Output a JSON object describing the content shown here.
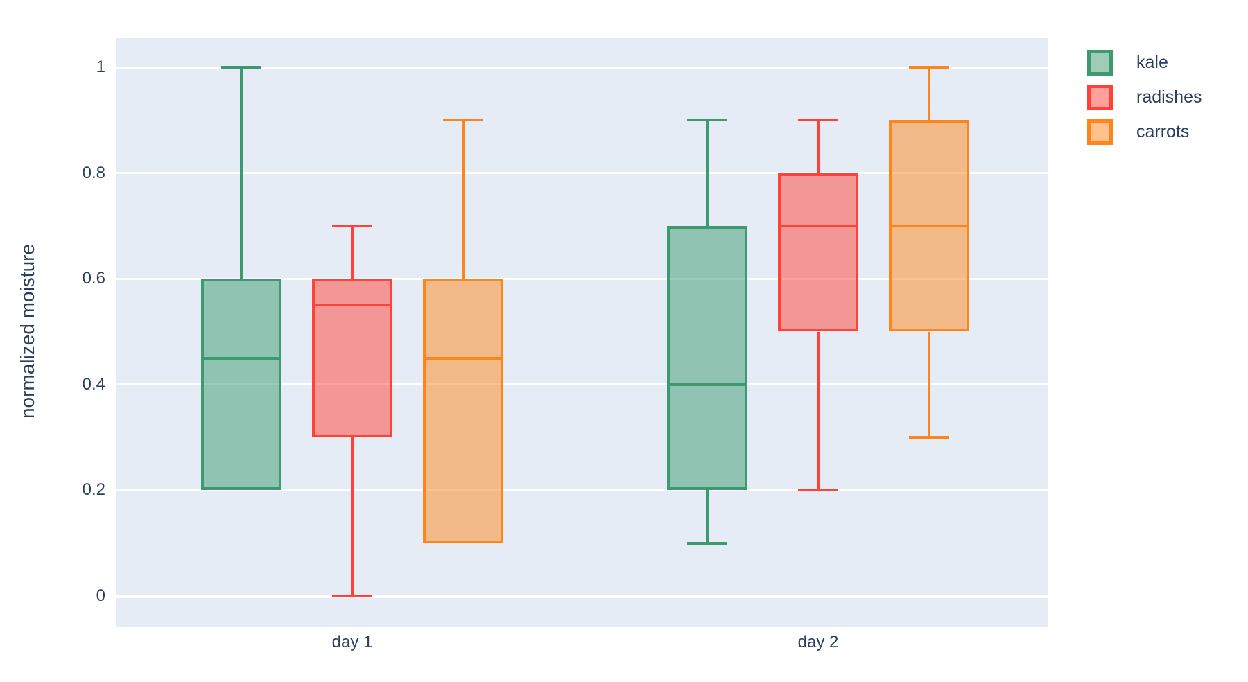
{
  "figure": {
    "background": "#FFFFFF",
    "plot_background": "#E5ECF6",
    "grid_color": "#FFFFFF",
    "zero_line_color": "#FFFFFF",
    "text_color": "#2A3F5F",
    "fill_opacity": 0.5
  },
  "chart_data": {
    "type": "box",
    "orientation": "vertical",
    "boxmode": "group",
    "title": "",
    "xlabel": "",
    "ylabel": "normalized moisture",
    "categories": [
      "day 1",
      "day 2"
    ],
    "y_ticks": [
      0,
      0.2,
      0.4,
      0.6,
      0.8,
      1
    ],
    "y_tick_labels": [
      "0",
      "0.2",
      "0.4",
      "0.6",
      "0.8",
      "1"
    ],
    "ylim": [
      -0.072,
      1.06
    ],
    "grid": true,
    "legend_position": "outside-top-right",
    "series": [
      {
        "name": "kale",
        "color": "#3D9970",
        "boxes": [
          {
            "category": "day 1",
            "low": 0.2,
            "q1": 0.2,
            "median": 0.45,
            "q3": 0.6,
            "high": 1.0
          },
          {
            "category": "day 2",
            "low": 0.1,
            "q1": 0.2,
            "median": 0.4,
            "q3": 0.7,
            "high": 0.9
          }
        ]
      },
      {
        "name": "radishes",
        "color": "#FF4136",
        "boxes": [
          {
            "category": "day 1",
            "low": 0.0,
            "q1": 0.3,
            "median": 0.55,
            "q3": 0.6,
            "high": 0.7
          },
          {
            "category": "day 2",
            "low": 0.2,
            "q1": 0.5,
            "median": 0.7,
            "q3": 0.8,
            "high": 0.9
          }
        ]
      },
      {
        "name": "carrots",
        "color": "#FF851B",
        "boxes": [
          {
            "category": "day 1",
            "low": 0.1,
            "q1": 0.1,
            "median": 0.45,
            "q3": 0.6,
            "high": 0.9
          },
          {
            "category": "day 2",
            "low": 0.3,
            "q1": 0.5,
            "median": 0.7,
            "q3": 0.9,
            "high": 1.0
          }
        ]
      }
    ]
  }
}
